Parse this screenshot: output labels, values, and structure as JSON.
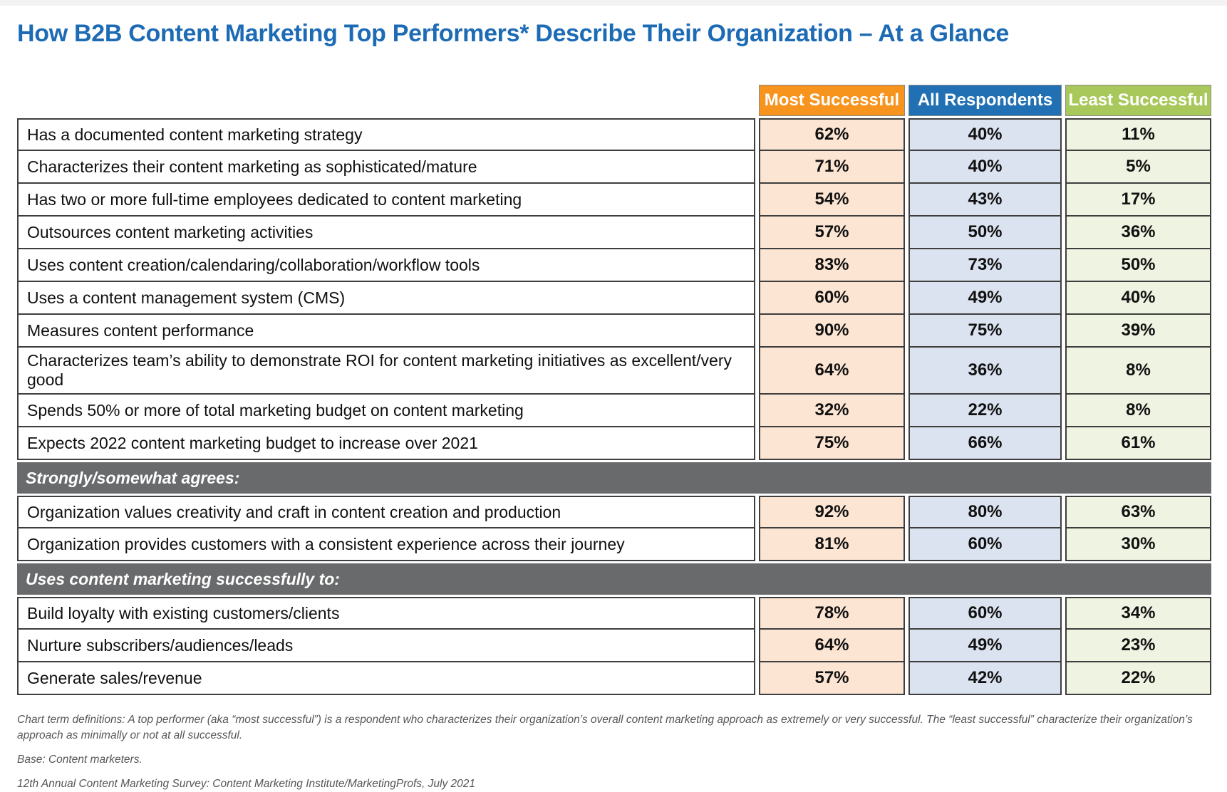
{
  "title": "How B2B Content Marketing Top Performers* Describe Their Organization – At a Glance",
  "colors": {
    "title_blue": "#1d6ab5",
    "header_orange": "#f7941e",
    "header_blue": "#2170b4",
    "header_green": "#a9c85b",
    "tint_orange": "#fce5d3",
    "tint_blue": "#dce3f0",
    "tint_green": "#eff3e1",
    "section_band_gray": "#696a6c",
    "border_dark": "#3e3e3e"
  },
  "table": {
    "columns": [
      {
        "name": "Most Successful",
        "header_bg": "#f7941e",
        "cell_bg": "#fce5d3"
      },
      {
        "name": "All Respondents",
        "header_bg": "#2170b4",
        "cell_bg": "#dce3f0"
      },
      {
        "name": "Least Successful",
        "header_bg": "#a9c85b",
        "cell_bg": "#eff3e1"
      }
    ]
  },
  "chart_data": {
    "type": "table",
    "title": "How B2B Content Marketing Top Performers* Describe Their Organization – At a Glance",
    "columns": [
      "Most Successful",
      "All Respondents",
      "Least Successful"
    ],
    "unit": "percent",
    "rows": [
      {
        "kind": "data",
        "label": "Has a documented content marketing strategy",
        "values": [
          62,
          40,
          11
        ]
      },
      {
        "kind": "data",
        "label": "Characterizes their content marketing as sophisticated/mature",
        "values": [
          71,
          40,
          5
        ]
      },
      {
        "kind": "data",
        "label": "Has two or more full-time employees dedicated to content marketing",
        "values": [
          54,
          43,
          17
        ]
      },
      {
        "kind": "data",
        "label": "Outsources content marketing activities",
        "values": [
          57,
          50,
          36
        ]
      },
      {
        "kind": "data",
        "label": "Uses content creation/calendaring/collaboration/workflow tools",
        "values": [
          83,
          73,
          50
        ]
      },
      {
        "kind": "data",
        "label": "Uses a content management system (CMS)",
        "values": [
          60,
          49,
          40
        ]
      },
      {
        "kind": "data",
        "label": "Measures content performance",
        "values": [
          90,
          75,
          39
        ]
      },
      {
        "kind": "data",
        "label": "Characterizes team’s ability to demonstrate ROI for content marketing initiatives as excellent/very good",
        "values": [
          64,
          36,
          8
        ]
      },
      {
        "kind": "data",
        "label": "Spends 50% or more of total marketing budget on content marketing",
        "values": [
          32,
          22,
          8
        ]
      },
      {
        "kind": "data",
        "label": "Expects 2022 content marketing budget to increase over 2021",
        "values": [
          75,
          66,
          61
        ]
      },
      {
        "kind": "section",
        "label": "Strongly/somewhat agrees:"
      },
      {
        "kind": "data",
        "label": "Organization values creativity and craft in content creation and production",
        "values": [
          92,
          80,
          63
        ]
      },
      {
        "kind": "data",
        "label": "Organization provides customers with a consistent experience across their journey",
        "values": [
          81,
          60,
          30
        ]
      },
      {
        "kind": "section",
        "label": "Uses content marketing successfully to:"
      },
      {
        "kind": "data",
        "label": "Build loyalty with existing customers/clients",
        "values": [
          78,
          60,
          34
        ]
      },
      {
        "kind": "data",
        "label": "Nurture subscribers/audiences/leads",
        "values": [
          64,
          49,
          23
        ]
      },
      {
        "kind": "data",
        "label": "Generate sales/revenue",
        "values": [
          57,
          42,
          22
        ]
      }
    ]
  },
  "footnotes": [
    "Chart term definitions: A top performer (aka “most successful”) is a respondent who characterizes their organization’s overall content marketing approach as extremely or very successful. The “least successful” characterize their organization’s approach as minimally or not at all successful.",
    "Base: Content marketers.",
    "12th Annual Content Marketing Survey: Content Marketing Institute/MarketingProfs, July 2021"
  ]
}
